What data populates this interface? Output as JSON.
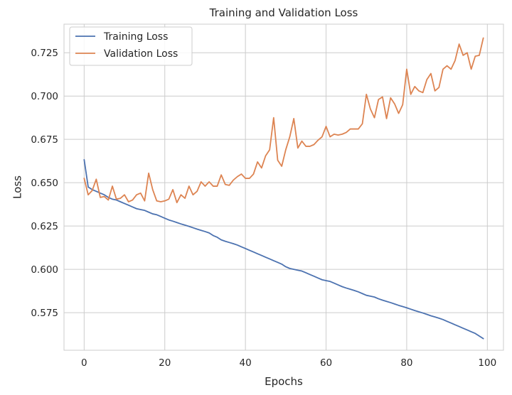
{
  "chart_data": {
    "type": "line",
    "title": "Training and Validation Loss",
    "xlabel": "Epochs",
    "ylabel": "Loss",
    "xlim": [
      -5,
      104
    ],
    "ylim": [
      0.5533,
      0.7415
    ],
    "x_ticks": [
      0,
      20,
      40,
      60,
      80,
      100
    ],
    "x_tick_labels": [
      "0",
      "20",
      "40",
      "60",
      "80",
      "100"
    ],
    "y_ticks": [
      0.575,
      0.6,
      0.625,
      0.65,
      0.675,
      0.7,
      0.725
    ],
    "y_tick_labels": [
      "0.575",
      "0.600",
      "0.625",
      "0.650",
      "0.675",
      "0.700",
      "0.725"
    ],
    "grid": true,
    "legend": "top-left",
    "x": [
      0,
      1,
      2,
      3,
      4,
      5,
      6,
      7,
      8,
      9,
      10,
      11,
      12,
      13,
      14,
      15,
      16,
      17,
      18,
      19,
      20,
      21,
      22,
      23,
      24,
      25,
      26,
      27,
      28,
      29,
      30,
      31,
      32,
      33,
      34,
      35,
      36,
      37,
      38,
      39,
      40,
      41,
      42,
      43,
      44,
      45,
      46,
      47,
      48,
      49,
      50,
      51,
      52,
      53,
      54,
      55,
      56,
      57,
      58,
      59,
      60,
      61,
      62,
      63,
      64,
      65,
      66,
      67,
      68,
      69,
      70,
      71,
      72,
      73,
      74,
      75,
      76,
      77,
      78,
      79,
      80,
      81,
      82,
      83,
      84,
      85,
      86,
      87,
      88,
      89,
      90,
      91,
      92,
      93,
      94,
      95,
      96,
      97,
      98,
      99
    ],
    "series": [
      {
        "name": "Training Loss",
        "color": "#4c72b0",
        "values": [
          0.6633,
          0.6475,
          0.646,
          0.645,
          0.644,
          0.643,
          0.6415,
          0.6405,
          0.64,
          0.639,
          0.638,
          0.637,
          0.636,
          0.635,
          0.6345,
          0.634,
          0.633,
          0.632,
          0.6315,
          0.6305,
          0.6295,
          0.6285,
          0.6278,
          0.627,
          0.6262,
          0.6255,
          0.6248,
          0.624,
          0.6232,
          0.6225,
          0.6218,
          0.621,
          0.6195,
          0.6185,
          0.617,
          0.6162,
          0.6155,
          0.6148,
          0.614,
          0.613,
          0.612,
          0.611,
          0.61,
          0.609,
          0.608,
          0.607,
          0.606,
          0.605,
          0.604,
          0.603,
          0.6015,
          0.6005,
          0.6,
          0.5995,
          0.599,
          0.598,
          0.597,
          0.596,
          0.595,
          0.594,
          0.5935,
          0.593,
          0.592,
          0.591,
          0.59,
          0.5892,
          0.5885,
          0.5878,
          0.587,
          0.586,
          0.585,
          0.5845,
          0.584,
          0.583,
          0.5822,
          0.5815,
          0.5808,
          0.58,
          0.5792,
          0.5785,
          0.5778,
          0.577,
          0.5762,
          0.5755,
          0.5748,
          0.574,
          0.5732,
          0.5725,
          0.5718,
          0.571,
          0.57,
          0.569,
          0.568,
          0.567,
          0.566,
          0.565,
          0.564,
          0.563,
          0.5615,
          0.56
        ]
      },
      {
        "name": "Validation Loss",
        "color": "#dd8452",
        "values": [
          0.6525,
          0.643,
          0.6455,
          0.652,
          0.6415,
          0.642,
          0.64,
          0.648,
          0.6405,
          0.641,
          0.643,
          0.639,
          0.64,
          0.643,
          0.644,
          0.6395,
          0.6555,
          0.646,
          0.6395,
          0.639,
          0.6395,
          0.6405,
          0.646,
          0.6385,
          0.643,
          0.641,
          0.648,
          0.643,
          0.645,
          0.6505,
          0.648,
          0.6505,
          0.648,
          0.648,
          0.6545,
          0.649,
          0.6485,
          0.6515,
          0.6535,
          0.655,
          0.6525,
          0.6525,
          0.655,
          0.662,
          0.6585,
          0.6655,
          0.669,
          0.6875,
          0.663,
          0.6595,
          0.669,
          0.6765,
          0.687,
          0.67,
          0.674,
          0.671,
          0.671,
          0.672,
          0.6745,
          0.6765,
          0.6825,
          0.6765,
          0.678,
          0.6775,
          0.678,
          0.679,
          0.681,
          0.681,
          0.681,
          0.684,
          0.701,
          0.6925,
          0.6875,
          0.698,
          0.6995,
          0.687,
          0.699,
          0.6955,
          0.69,
          0.695,
          0.7155,
          0.701,
          0.7055,
          0.703,
          0.702,
          0.7095,
          0.713,
          0.703,
          0.705,
          0.7155,
          0.7175,
          0.7155,
          0.7205,
          0.73,
          0.7235,
          0.725,
          0.7155,
          0.723,
          0.7235,
          0.7335
        ]
      }
    ]
  }
}
